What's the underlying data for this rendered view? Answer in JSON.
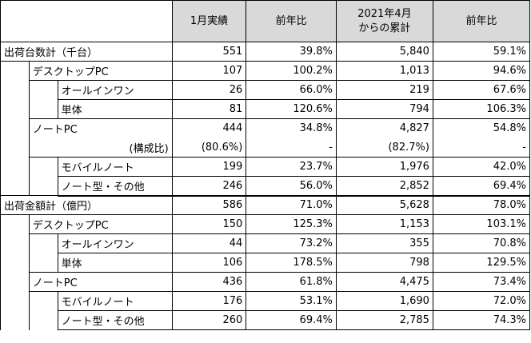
{
  "header": {
    "col1": "1月実績",
    "col2": "前年比",
    "col3_line1": "2021年4月",
    "col3_line2": "からの累計",
    "col4": "前年比"
  },
  "rows": [
    {
      "label": "出荷台数計（千台）",
      "v1": "551",
      "v2": "39.8%",
      "v3": "5,840",
      "v4": "59.1%"
    },
    {
      "label": "デスクトップPC",
      "v1": "107",
      "v2": "100.2%",
      "v3": "1,013",
      "v4": "94.6%"
    },
    {
      "label": "オールインワン",
      "v1": "26",
      "v2": "66.0%",
      "v3": "219",
      "v4": "67.6%"
    },
    {
      "label": "単体",
      "v1": "81",
      "v2": "120.6%",
      "v3": "794",
      "v4": "106.3%"
    },
    {
      "label": "ノートPC",
      "v1": "444",
      "v2": "34.8%",
      "v3": "4,827",
      "v4": "54.8%"
    },
    {
      "label": "(構成比)",
      "v1": "(80.6%)",
      "v2": "-",
      "v3": "(82.7%)",
      "v4": "-"
    },
    {
      "label": "モバイルノート",
      "v1": "199",
      "v2": "23.7%",
      "v3": "1,976",
      "v4": "42.0%"
    },
    {
      "label": "ノート型・その他",
      "v1": "246",
      "v2": "56.0%",
      "v3": "2,852",
      "v4": "69.4%"
    },
    {
      "label": "出荷金額計（億円）",
      "v1": "586",
      "v2": "71.0%",
      "v3": "5,628",
      "v4": "78.0%"
    },
    {
      "label": "デスクトップPC",
      "v1": "150",
      "v2": "125.3%",
      "v3": "1,153",
      "v4": "103.1%"
    },
    {
      "label": "オールインワン",
      "v1": "44",
      "v2": "73.2%",
      "v3": "355",
      "v4": "70.8%"
    },
    {
      "label": "単体",
      "v1": "106",
      "v2": "178.5%",
      "v3": "798",
      "v4": "129.5%"
    },
    {
      "label": "ノートPC",
      "v1": "436",
      "v2": "61.8%",
      "v3": "4,475",
      "v4": "73.4%"
    },
    {
      "label": "モバイルノート",
      "v1": "176",
      "v2": "53.1%",
      "v3": "1,690",
      "v4": "72.0%"
    },
    {
      "label": "ノート型・その他",
      "v1": "260",
      "v2": "69.4%",
      "v3": "2,785",
      "v4": "74.3%"
    }
  ]
}
